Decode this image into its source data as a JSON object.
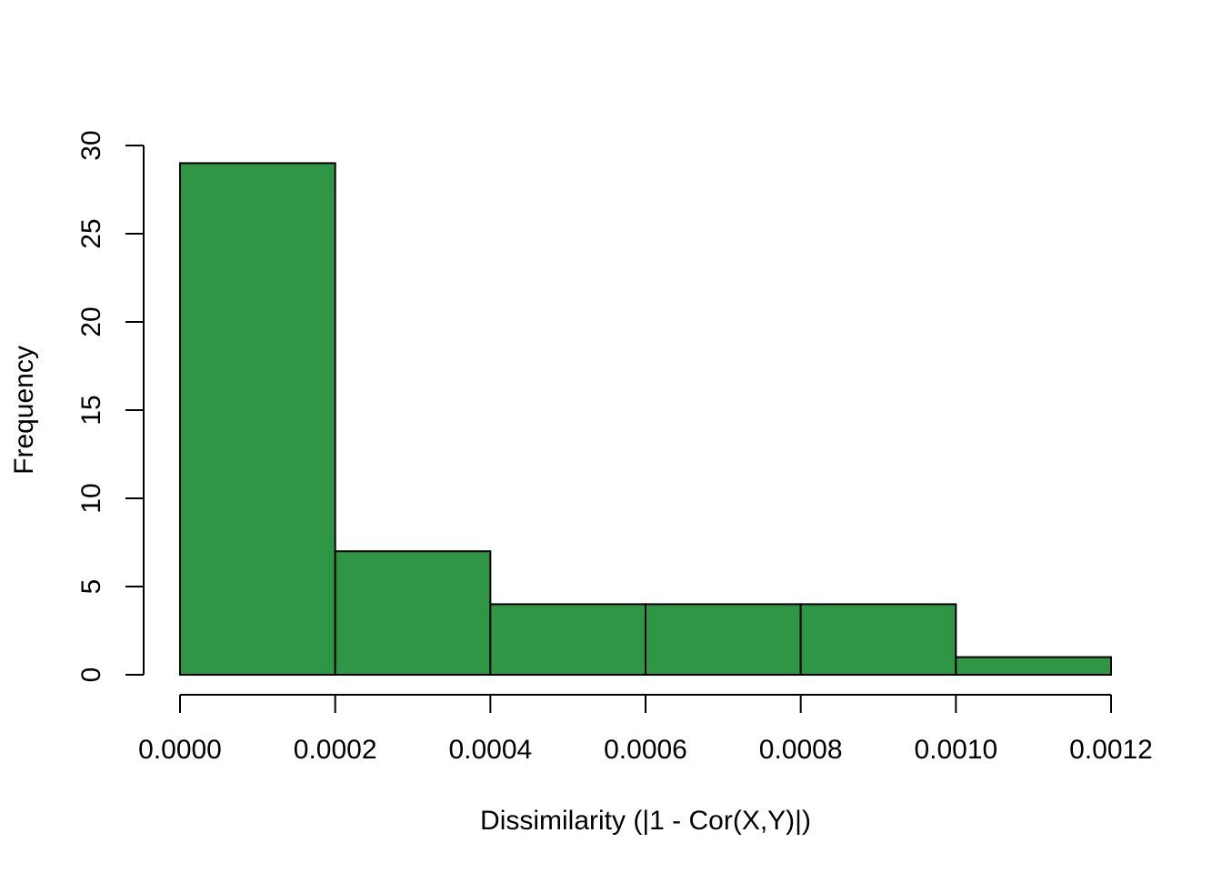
{
  "chart_data": {
    "type": "bar",
    "histogram": true,
    "title": "",
    "xlabel": "Dissimilarity (|1 - Cor(X,Y)|)",
    "ylabel": "Frequency",
    "bins": [
      {
        "start": 0.0,
        "end": 0.0002,
        "count": 29
      },
      {
        "start": 0.0002,
        "end": 0.0004,
        "count": 7
      },
      {
        "start": 0.0004,
        "end": 0.0006,
        "count": 4
      },
      {
        "start": 0.0006,
        "end": 0.0008,
        "count": 4
      },
      {
        "start": 0.0008,
        "end": 0.001,
        "count": 4
      },
      {
        "start": 0.001,
        "end": 0.0012,
        "count": 1
      }
    ],
    "xlim": [
      0,
      0.0012
    ],
    "ylim": [
      0,
      30
    ],
    "x_ticks": [
      0,
      0.0002,
      0.0004,
      0.0006,
      0.0008,
      0.001,
      0.0012
    ],
    "x_tick_labels": [
      "0.0000",
      "0.0002",
      "0.0004",
      "0.0006",
      "0.0008",
      "0.0010",
      "0.0012"
    ],
    "y_ticks": [
      0,
      5,
      10,
      15,
      20,
      25,
      30
    ],
    "y_tick_labels": [
      "0",
      "5",
      "10",
      "15",
      "20",
      "25",
      "30"
    ],
    "bar_color": "#2e9645",
    "edge_color": "#000000",
    "grid": false,
    "legend": "none"
  }
}
